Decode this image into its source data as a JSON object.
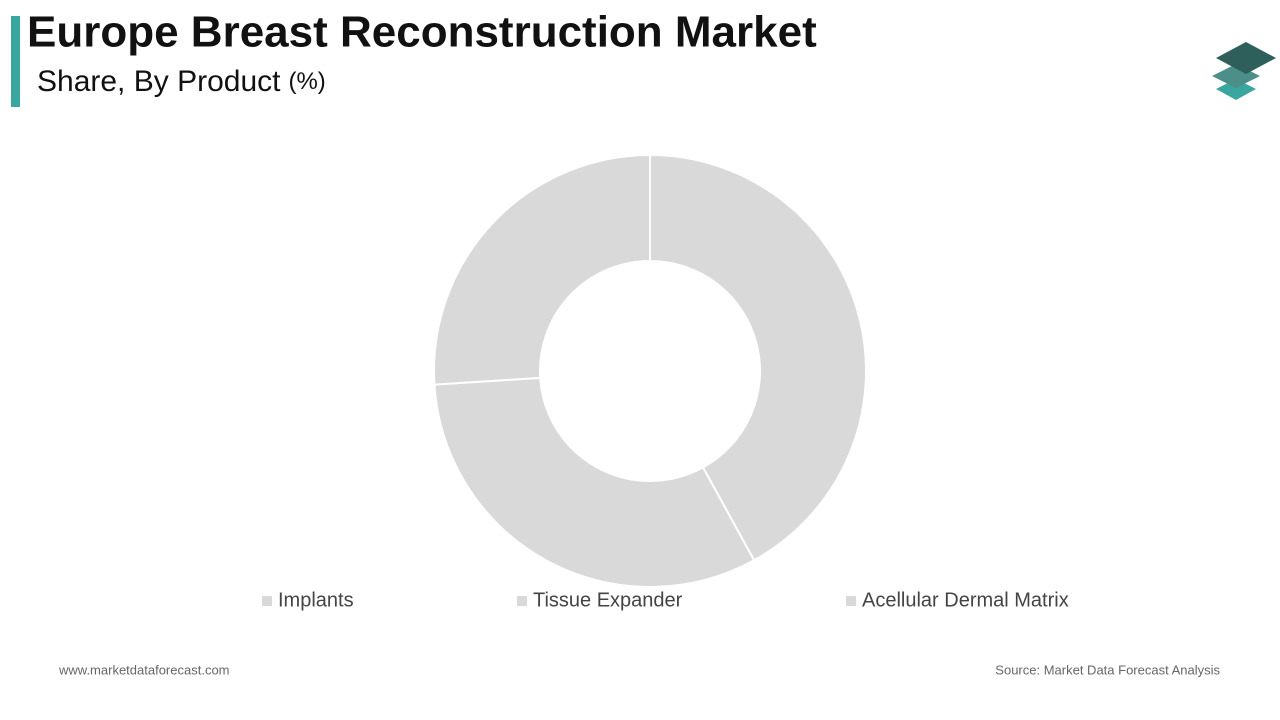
{
  "chart_data": {
    "type": "donut",
    "title": "Europe Breast Reconstruction Market",
    "subtitle": "Share, By Product",
    "unit": "(%)",
    "categories": [
      "Implants",
      "Tissue Expander",
      "Acellular Dermal Matrix"
    ],
    "values": [
      42,
      32,
      26
    ],
    "colors": [
      "#d9d9d9",
      "#d9d9d9",
      "#d9d9d9"
    ],
    "footer_left": "www.marketdataforecast.com",
    "footer_right": "Source: Market Data Forecast Analysis"
  }
}
